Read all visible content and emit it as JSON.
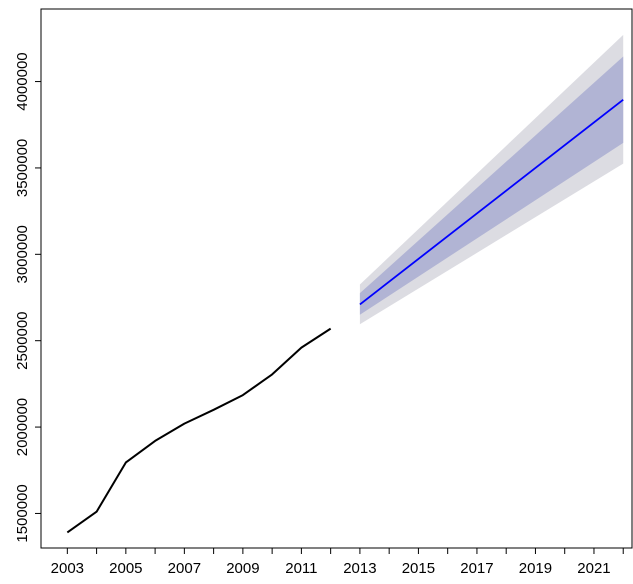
{
  "chart_data": {
    "type": "line",
    "title": "",
    "xlabel": "",
    "ylabel": "",
    "xlim": [
      2002.1,
      2022.3
    ],
    "ylim": [
      1300000,
      4420000
    ],
    "x_ticks": [
      2003,
      2005,
      2007,
      2009,
      2011,
      2013,
      2015,
      2017,
      2019,
      2021
    ],
    "x_tick_labels": [
      "2003",
      "2005",
      "2007",
      "2009",
      "2011",
      "2013",
      "2015",
      "2017",
      "2019",
      "2021"
    ],
    "x_minor_ticks": [
      2004,
      2006,
      2008,
      2010,
      2012,
      2014,
      2016,
      2018,
      2020,
      2022
    ],
    "y_ticks": [
      1500000,
      2000000,
      2500000,
      3000000,
      3500000,
      4000000
    ],
    "y_tick_labels": [
      "1500000",
      "2000000",
      "2500000",
      "3000000",
      "3500000",
      "4000000"
    ],
    "grid": false,
    "legend": "none",
    "series": [
      {
        "role": "observed",
        "color": "#000000",
        "x": [
          2003,
          2004,
          2005,
          2006,
          2007,
          2008,
          2009,
          2010,
          2011,
          2012
        ],
        "values": [
          1390000,
          1510000,
          1795000,
          1920000,
          2020000,
          2100000,
          2185000,
          2305000,
          2460000,
          2570000
        ]
      },
      {
        "role": "forecast",
        "color": "#0000ff",
        "x": [
          2013,
          2022
        ],
        "values": [
          2710000,
          3895000
        ]
      }
    ],
    "intervals": [
      {
        "role": "outer-interval",
        "color": "#dcdce2",
        "x": [
          2013,
          2022
        ],
        "lower": [
          2595000,
          3525000
        ],
        "upper": [
          2825000,
          4270000
        ]
      },
      {
        "role": "inner-interval",
        "color": "#b1b4d4",
        "x": [
          2013,
          2022
        ],
        "lower": [
          2650000,
          3645000
        ],
        "upper": [
          2775000,
          4145000
        ]
      }
    ]
  }
}
